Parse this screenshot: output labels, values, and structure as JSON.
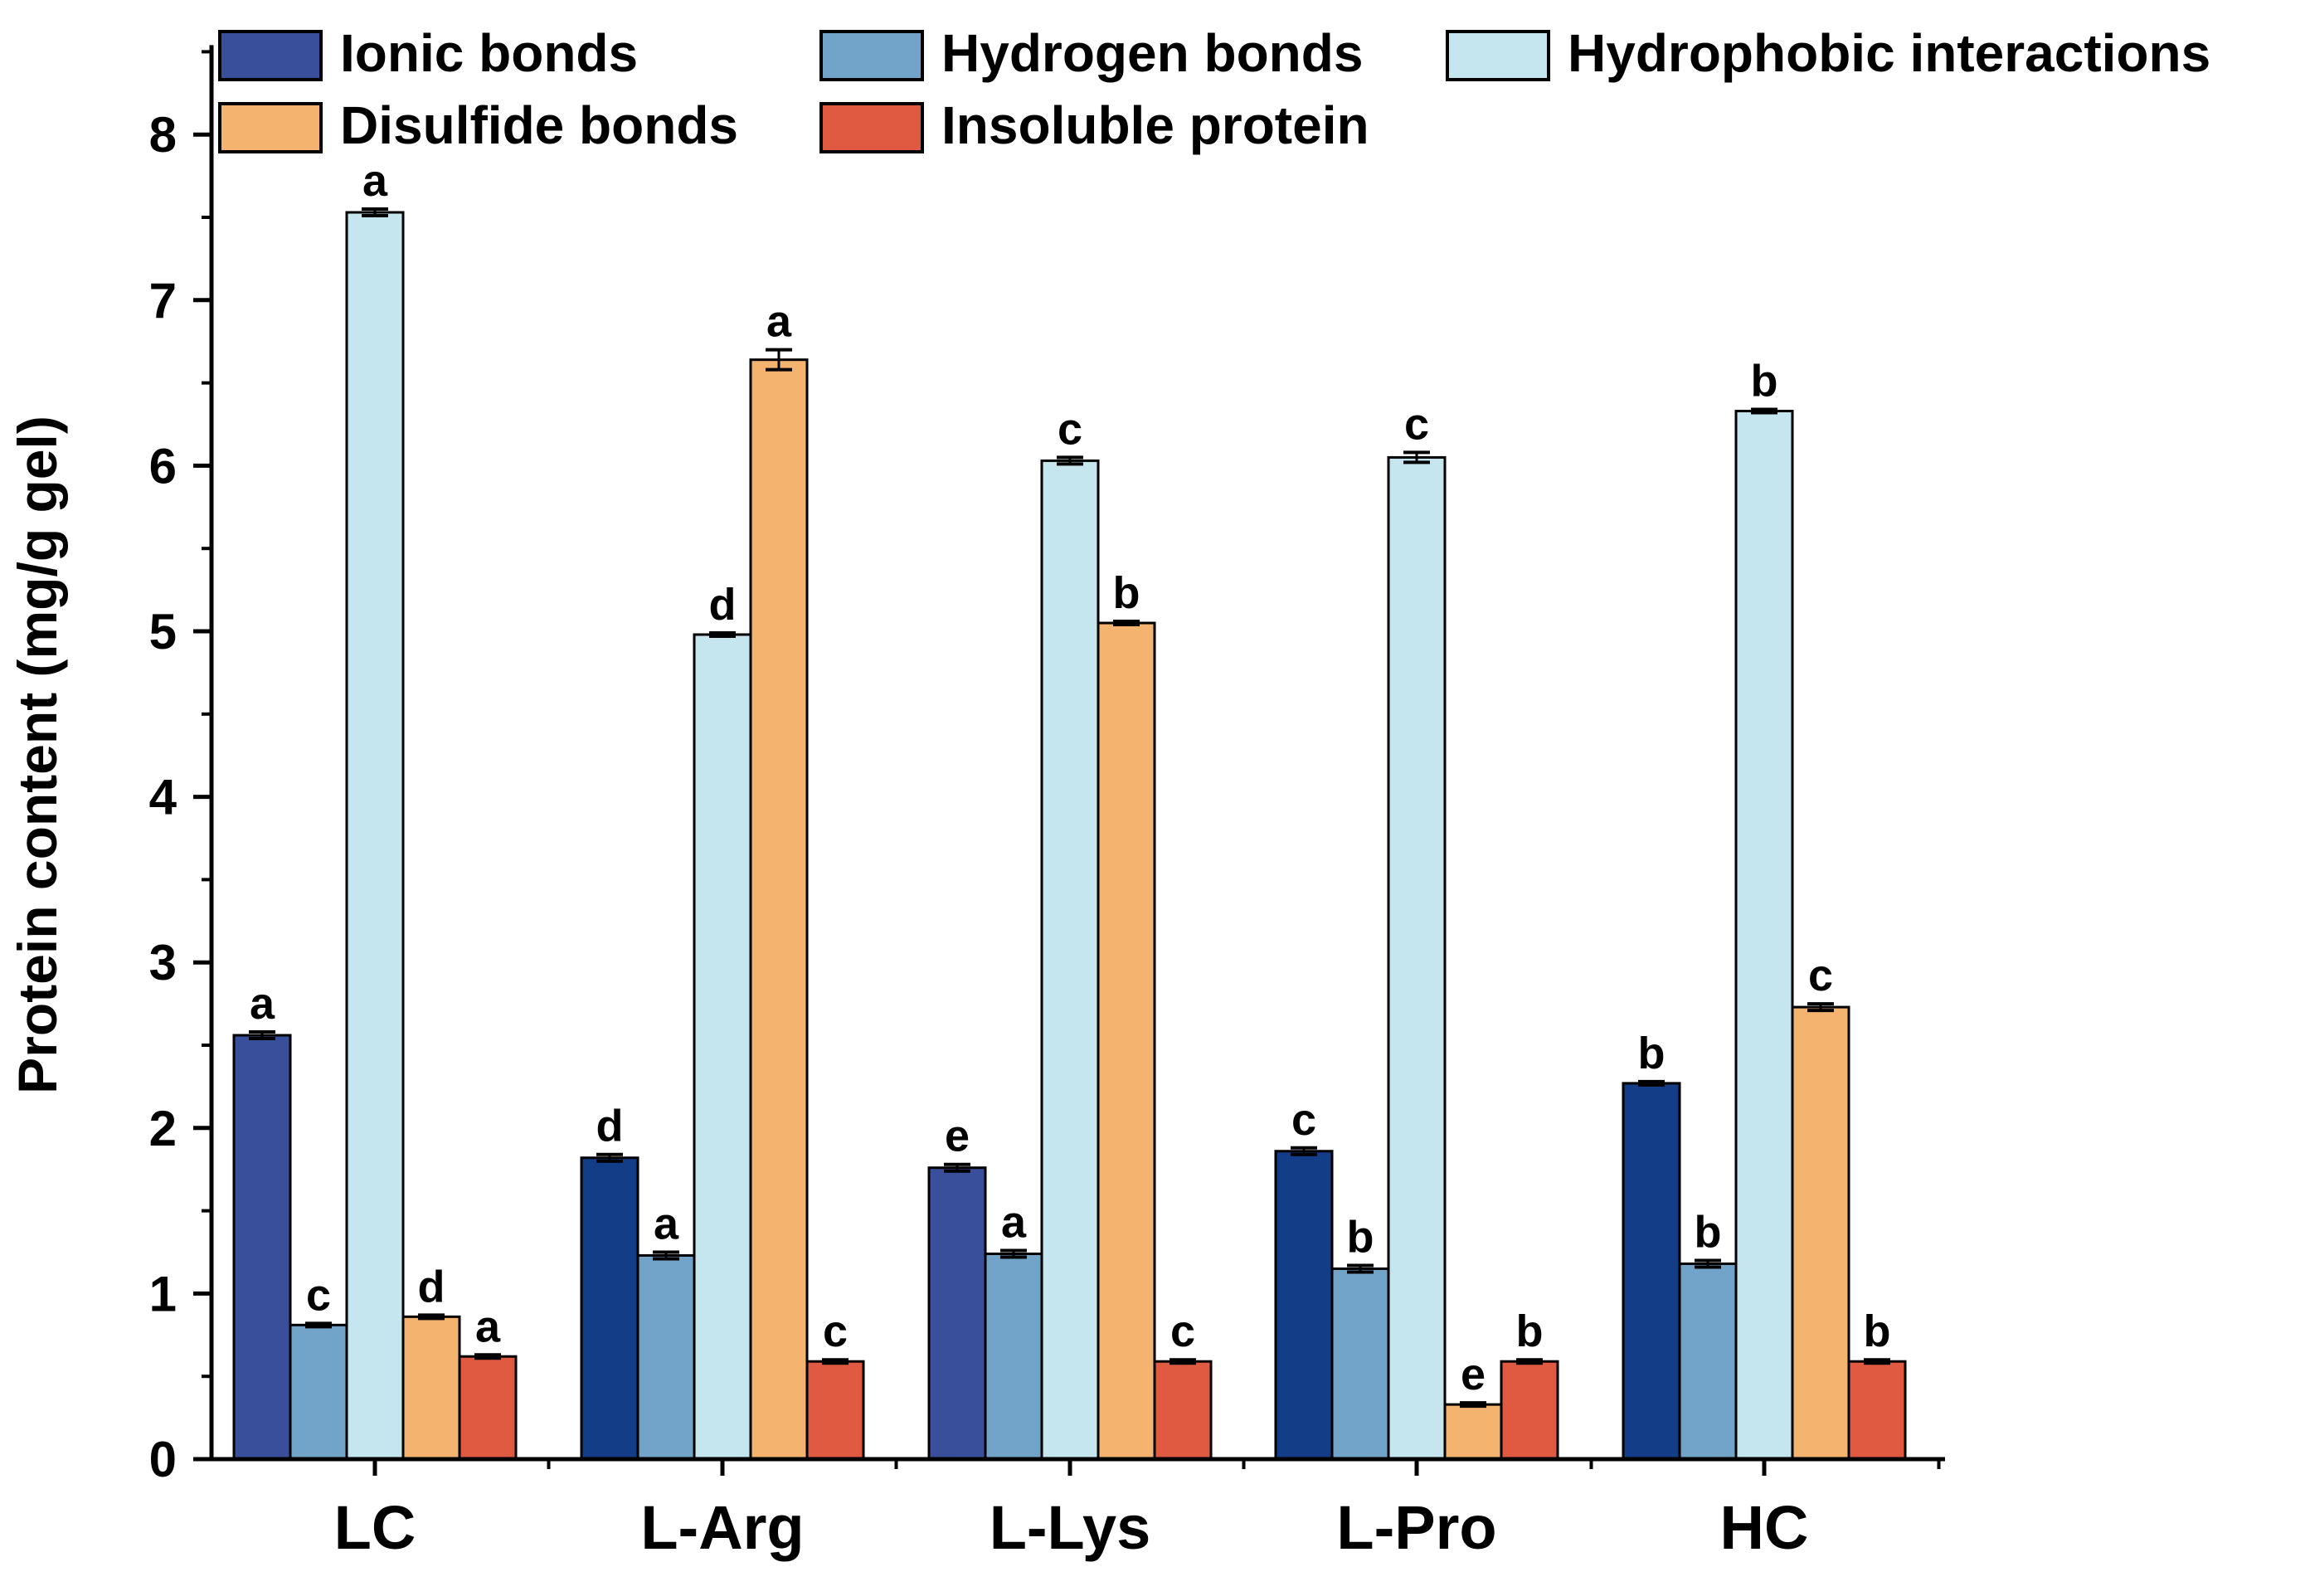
{
  "chart_data": {
    "type": "bar",
    "title": "",
    "xlabel": "",
    "ylabel": "Protein content (mg/g gel)",
    "ylim": [
      0,
      8.5
    ],
    "yticks": [
      0,
      1,
      2,
      3,
      4,
      5,
      6,
      7,
      8
    ],
    "grid": false,
    "legend_position": "top",
    "categories": [
      "LC",
      "L-Arg",
      "L-Lys",
      "L-Pro",
      "HC"
    ],
    "series": [
      {
        "name": "Ionic bonds",
        "color": "#3a4f9c",
        "values": [
          2.56,
          1.82,
          1.76,
          1.86,
          2.27
        ],
        "errors": [
          0.02,
          0.02,
          0.02,
          0.02,
          0.01
        ],
        "labels": [
          "a",
          "d",
          "e",
          "c",
          "b"
        ],
        "bar_colors": [
          "#3a4f9c",
          "#133d87",
          "#3a4f9c",
          "#133d87",
          "#133d87"
        ]
      },
      {
        "name": "Hydrogen bonds",
        "color": "#72a4c9",
        "values": [
          0.81,
          1.23,
          1.24,
          1.15,
          1.18
        ],
        "errors": [
          0.01,
          0.02,
          0.02,
          0.02,
          0.02
        ],
        "labels": [
          "c",
          "a",
          "a",
          "b",
          "b"
        ]
      },
      {
        "name": "Hydrophobic interactions",
        "color": "#c5e6ef",
        "values": [
          7.53,
          4.98,
          6.03,
          6.05,
          6.33
        ],
        "errors": [
          0.02,
          0.01,
          0.02,
          0.03,
          0.01
        ],
        "labels": [
          "a",
          "d",
          "c",
          "c",
          "b"
        ]
      },
      {
        "name": "Disulfide bonds",
        "color": "#f4b36e",
        "values": [
          0.86,
          6.64,
          5.05,
          0.33,
          2.73
        ],
        "errors": [
          0.01,
          0.06,
          0.01,
          0.01,
          0.02
        ],
        "labels": [
          "d",
          "a",
          "b",
          "e",
          "c"
        ]
      },
      {
        "name": "Insoluble protein",
        "color": "#e05a42",
        "values": [
          0.62,
          0.59,
          0.59,
          0.59,
          0.59
        ],
        "errors": [
          0.01,
          0.01,
          0.01,
          0.01,
          0.01
        ],
        "labels": [
          "a",
          "c",
          "c",
          "b",
          "b"
        ]
      }
    ]
  }
}
